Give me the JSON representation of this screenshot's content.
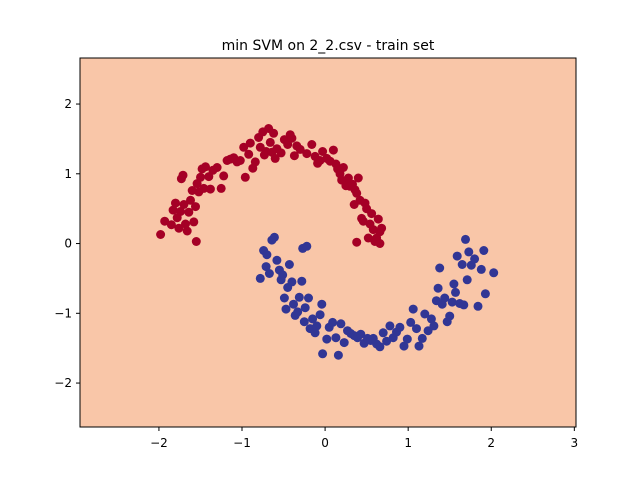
{
  "chart_data": {
    "type": "scatter",
    "title": "min SVM on 2_2.csv - train set",
    "xlabel": "",
    "ylabel": "",
    "xlim": [
      -2.95,
      3.02
    ],
    "ylim": [
      -2.63,
      2.66
    ],
    "xticks": [
      -2,
      -1,
      0,
      1,
      2,
      3
    ],
    "yticks": [
      -2,
      -1,
      0,
      1,
      2
    ],
    "xtick_labels": [
      "−2",
      "−1",
      "0",
      "1",
      "2",
      "3"
    ],
    "ytick_labels": [
      "−2",
      "−1",
      "0",
      "1",
      "2"
    ],
    "grid": false,
    "legend": "none",
    "background_region_color": "#f9c6a8",
    "series": [
      {
        "color": "#a50026",
        "points": [
          [
            -1.98,
            0.13
          ],
          [
            -1.93,
            0.32
          ],
          [
            -1.85,
            0.27
          ],
          [
            -1.83,
            0.48
          ],
          [
            -1.8,
            0.58
          ],
          [
            -1.78,
            0.37
          ],
          [
            -1.76,
            0.22
          ],
          [
            -1.74,
            0.46
          ],
          [
            -1.73,
            0.93
          ],
          [
            -1.71,
            0.98
          ],
          [
            -1.7,
            0.56
          ],
          [
            -1.68,
            0.28
          ],
          [
            -1.66,
            0.18
          ],
          [
            -1.64,
            0.45
          ],
          [
            -1.62,
            0.62
          ],
          [
            -1.6,
            0.76
          ],
          [
            -1.58,
            0.31
          ],
          [
            -1.56,
            0.53
          ],
          [
            -1.55,
            0.03
          ],
          [
            -1.54,
            0.86
          ],
          [
            -1.52,
            0.74
          ],
          [
            -1.5,
            0.95
          ],
          [
            -1.48,
            1.07
          ],
          [
            -1.46,
            0.79
          ],
          [
            -1.44,
            1.1
          ],
          [
            -1.4,
            0.96
          ],
          [
            -1.38,
            0.78
          ],
          [
            -1.35,
            1.05
          ],
          [
            -1.3,
            1.09
          ],
          [
            -1.25,
            0.79
          ],
          [
            -1.22,
            0.97
          ],
          [
            -1.18,
            1.19
          ],
          [
            -1.14,
            1.21
          ],
          [
            -1.1,
            1.23
          ],
          [
            -1.06,
            1.17
          ],
          [
            -1.02,
            1.19
          ],
          [
            -0.98,
            1.38
          ],
          [
            -0.96,
            0.95
          ],
          [
            -0.92,
            1.28
          ],
          [
            -0.9,
            1.44
          ],
          [
            -0.87,
            1.08
          ],
          [
            -0.84,
            1.17
          ],
          [
            -0.8,
            1.52
          ],
          [
            -0.78,
            1.38
          ],
          [
            -0.75,
            1.6
          ],
          [
            -0.73,
            1.27
          ],
          [
            -0.71,
            1.32
          ],
          [
            -0.68,
            1.65
          ],
          [
            -0.66,
            1.45
          ],
          [
            -0.64,
            1.31
          ],
          [
            -0.62,
            1.58
          ],
          [
            -0.6,
            1.22
          ],
          [
            -0.58,
            1.36
          ],
          [
            -0.53,
            1.3
          ],
          [
            -0.49,
            1.49
          ],
          [
            -0.45,
            1.42
          ],
          [
            -0.42,
            1.56
          ],
          [
            -0.4,
            1.51
          ],
          [
            -0.37,
            1.26
          ],
          [
            -0.34,
            1.4
          ],
          [
            -0.3,
            1.35
          ],
          [
            -0.22,
            1.29
          ],
          [
            -0.16,
            1.42
          ],
          [
            -0.12,
            1.25
          ],
          [
            -0.09,
            1.15
          ],
          [
            -0.06,
            1.19
          ],
          [
            -0.03,
            1.32
          ],
          [
            0.02,
            1.22
          ],
          [
            0.06,
            1.18
          ],
          [
            0.1,
            1.34
          ],
          [
            0.13,
            1.14
          ],
          [
            0.15,
            1.07
          ],
          [
            0.18,
            1.0
          ],
          [
            0.2,
            0.91
          ],
          [
            0.22,
            1.09
          ],
          [
            0.25,
            0.83
          ],
          [
            0.28,
            0.94
          ],
          [
            0.3,
            0.82
          ],
          [
            0.33,
            0.85
          ],
          [
            0.35,
            0.56
          ],
          [
            0.36,
            0.77
          ],
          [
            0.38,
            0.72
          ],
          [
            0.4,
            0.94
          ],
          [
            0.42,
            0.62
          ],
          [
            0.44,
            0.36
          ],
          [
            0.46,
            0.32
          ],
          [
            0.48,
            0.58
          ],
          [
            0.5,
            0.5
          ],
          [
            0.52,
            0.08
          ],
          [
            0.54,
            0.28
          ],
          [
            0.56,
            0.43
          ],
          [
            0.58,
            0.2
          ],
          [
            0.6,
            0.03
          ],
          [
            0.62,
            0.08
          ],
          [
            0.64,
            0.35
          ],
          [
            0.66,
            0.17
          ],
          [
            0.68,
            0.22
          ],
          [
            0.66,
            0.0
          ],
          [
            0.38,
            0.02
          ]
        ]
      },
      {
        "color": "#313695",
        "points": [
          [
            -0.78,
            -0.5
          ],
          [
            -0.74,
            -0.1
          ],
          [
            -0.71,
            -0.33
          ],
          [
            -0.7,
            -0.16
          ],
          [
            -0.67,
            -0.43
          ],
          [
            -0.64,
            0.05
          ],
          [
            -0.61,
            0.09
          ],
          [
            -0.58,
            -0.24
          ],
          [
            -0.55,
            -0.38
          ],
          [
            -0.53,
            -0.52
          ],
          [
            -0.51,
            -0.45
          ],
          [
            -0.49,
            -0.78
          ],
          [
            -0.47,
            -0.94
          ],
          [
            -0.45,
            -0.63
          ],
          [
            -0.43,
            -0.3
          ],
          [
            -0.4,
            -0.55
          ],
          [
            -0.38,
            -0.87
          ],
          [
            -0.36,
            -1.03
          ],
          [
            -0.33,
            -0.98
          ],
          [
            -0.31,
            -0.77
          ],
          [
            -0.28,
            -0.54
          ],
          [
            -0.27,
            -0.07
          ],
          [
            -0.25,
            -1.12
          ],
          [
            -0.24,
            -0.92
          ],
          [
            -0.22,
            -0.04
          ],
          [
            -0.2,
            -0.78
          ],
          [
            -0.18,
            -1.22
          ],
          [
            -0.15,
            -1.08
          ],
          [
            -0.12,
            -1.28
          ],
          [
            -0.1,
            -1.18
          ],
          [
            -0.06,
            -1.02
          ],
          [
            -0.04,
            -0.87
          ],
          [
            -0.03,
            -1.58
          ],
          [
            0.02,
            -1.37
          ],
          [
            0.05,
            -1.2
          ],
          [
            0.09,
            -1.13
          ],
          [
            0.13,
            -1.35
          ],
          [
            0.16,
            -1.6
          ],
          [
            0.19,
            -1.15
          ],
          [
            0.23,
            -1.42
          ],
          [
            0.27,
            -1.25
          ],
          [
            0.31,
            -1.29
          ],
          [
            0.35,
            -1.32
          ],
          [
            0.39,
            -1.35
          ],
          [
            0.43,
            -1.3
          ],
          [
            0.47,
            -1.43
          ],
          [
            0.51,
            -1.36
          ],
          [
            0.55,
            -1.39
          ],
          [
            0.58,
            -1.36
          ],
          [
            0.62,
            -1.44
          ],
          [
            0.66,
            -1.48
          ],
          [
            0.7,
            -1.28
          ],
          [
            0.74,
            -1.4
          ],
          [
            0.78,
            -1.18
          ],
          [
            0.82,
            -1.35
          ],
          [
            0.86,
            -1.27
          ],
          [
            0.9,
            -1.2
          ],
          [
            0.95,
            -1.47
          ],
          [
            0.99,
            -1.37
          ],
          [
            1.03,
            -1.13
          ],
          [
            1.06,
            -0.94
          ],
          [
            1.1,
            -1.22
          ],
          [
            1.13,
            -1.47
          ],
          [
            1.17,
            -1.36
          ],
          [
            1.2,
            -1.01
          ],
          [
            1.24,
            -1.25
          ],
          [
            1.28,
            -1.08
          ],
          [
            1.31,
            -1.18
          ],
          [
            1.34,
            -0.82
          ],
          [
            1.36,
            -0.64
          ],
          [
            1.38,
            -0.35
          ],
          [
            1.41,
            -0.87
          ],
          [
            1.44,
            -0.78
          ],
          [
            1.47,
            -1.12
          ],
          [
            1.5,
            -1.04
          ],
          [
            1.53,
            -0.84
          ],
          [
            1.55,
            -0.58
          ],
          [
            1.57,
            -0.7
          ],
          [
            1.59,
            -0.18
          ],
          [
            1.62,
            -0.86
          ],
          [
            1.65,
            -0.3
          ],
          [
            1.67,
            -0.88
          ],
          [
            1.69,
            0.06
          ],
          [
            1.71,
            -0.52
          ],
          [
            1.73,
            -0.12
          ],
          [
            1.76,
            -0.31
          ],
          [
            1.8,
            -0.22
          ],
          [
            1.84,
            -0.9
          ],
          [
            1.88,
            -0.37
          ],
          [
            1.91,
            -0.1
          ],
          [
            1.93,
            -0.72
          ],
          [
            2.03,
            -0.42
          ]
        ]
      }
    ]
  }
}
